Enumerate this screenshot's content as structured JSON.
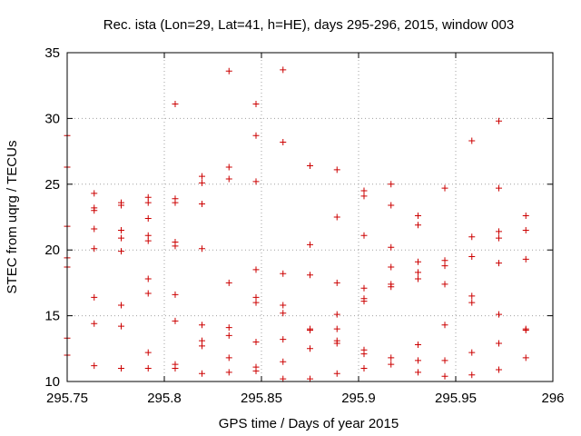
{
  "chart_data": {
    "type": "scatter",
    "title": "Rec. ista (Lon=29, Lat=41, h=HE), days 295-296, 2015, window 003",
    "xlabel": "GPS time / Days of year 2015",
    "ylabel": "STEC from uqrg / TECUs",
    "xlim": [
      295.75,
      296
    ],
    "ylim": [
      10,
      35
    ],
    "x_ticks": [
      "295.75",
      "295.8",
      "295.85",
      "295.9",
      "295.95",
      "296"
    ],
    "y_ticks": [
      "10",
      "15",
      "20",
      "25",
      "30",
      "35"
    ],
    "grid": true,
    "marker": "+",
    "marker_color": "#cc0000",
    "points": [
      {
        "x": 295.75,
        "y": [
          28.7,
          26.3,
          21.8,
          19.4,
          18.7,
          13.3,
          12.0
        ]
      },
      {
        "x": 295.7639,
        "y": [
          24.3,
          23.2,
          23.0,
          21.6,
          20.1,
          16.4,
          14.4,
          11.2
        ]
      },
      {
        "x": 295.7778,
        "y": [
          23.6,
          23.4,
          21.5,
          20.9,
          19.9,
          15.8,
          14.2,
          11.0
        ]
      },
      {
        "x": 295.7917,
        "y": [
          24.0,
          23.6,
          22.4,
          21.1,
          20.7,
          17.8,
          16.7,
          12.2,
          11.0
        ]
      },
      {
        "x": 295.8056,
        "y": [
          31.1,
          23.9,
          23.6,
          20.6,
          20.3,
          16.6,
          14.6,
          11.3,
          11.0
        ]
      },
      {
        "x": 295.8194,
        "y": [
          25.6,
          25.1,
          23.5,
          20.1,
          14.3,
          13.1,
          12.7,
          10.6
        ]
      },
      {
        "x": 295.8333,
        "y": [
          33.6,
          26.3,
          25.4,
          17.5,
          14.1,
          13.5,
          11.8,
          10.7
        ]
      },
      {
        "x": 295.8472,
        "y": [
          31.1,
          28.7,
          25.2,
          18.5,
          16.4,
          16.0,
          13.0,
          11.1,
          10.8
        ]
      },
      {
        "x": 295.8611,
        "y": [
          33.7,
          28.2,
          18.2,
          15.8,
          15.2,
          13.2,
          11.5,
          10.2
        ]
      },
      {
        "x": 295.875,
        "y": [
          26.4,
          20.4,
          18.1,
          14.0,
          13.9,
          12.5,
          10.2
        ]
      },
      {
        "x": 295.8889,
        "y": [
          26.1,
          22.5,
          17.5,
          15.1,
          14.0,
          13.1,
          12.9,
          10.6
        ]
      },
      {
        "x": 295.9028,
        "y": [
          24.5,
          24.1,
          21.1,
          17.1,
          16.3,
          16.1,
          12.4,
          12.1,
          11.0
        ]
      },
      {
        "x": 295.9167,
        "y": [
          25.0,
          23.4,
          20.2,
          18.7,
          17.4,
          17.2,
          11.8,
          11.3
        ]
      },
      {
        "x": 295.9306,
        "y": [
          22.6,
          21.9,
          19.1,
          18.3,
          17.8,
          12.8,
          11.6,
          10.7
        ]
      },
      {
        "x": 295.9444,
        "y": [
          24.7,
          19.2,
          18.8,
          17.4,
          14.3,
          11.6,
          10.4
        ]
      },
      {
        "x": 295.9583,
        "y": [
          28.3,
          21.0,
          19.5,
          16.5,
          16.0,
          12.2,
          10.5
        ]
      },
      {
        "x": 295.9722,
        "y": [
          29.8,
          24.7,
          21.4,
          20.9,
          19.0,
          15.1,
          12.9,
          10.9
        ]
      },
      {
        "x": 295.9861,
        "y": [
          22.6,
          21.5,
          19.3,
          14.0,
          13.9,
          11.8
        ]
      }
    ]
  }
}
